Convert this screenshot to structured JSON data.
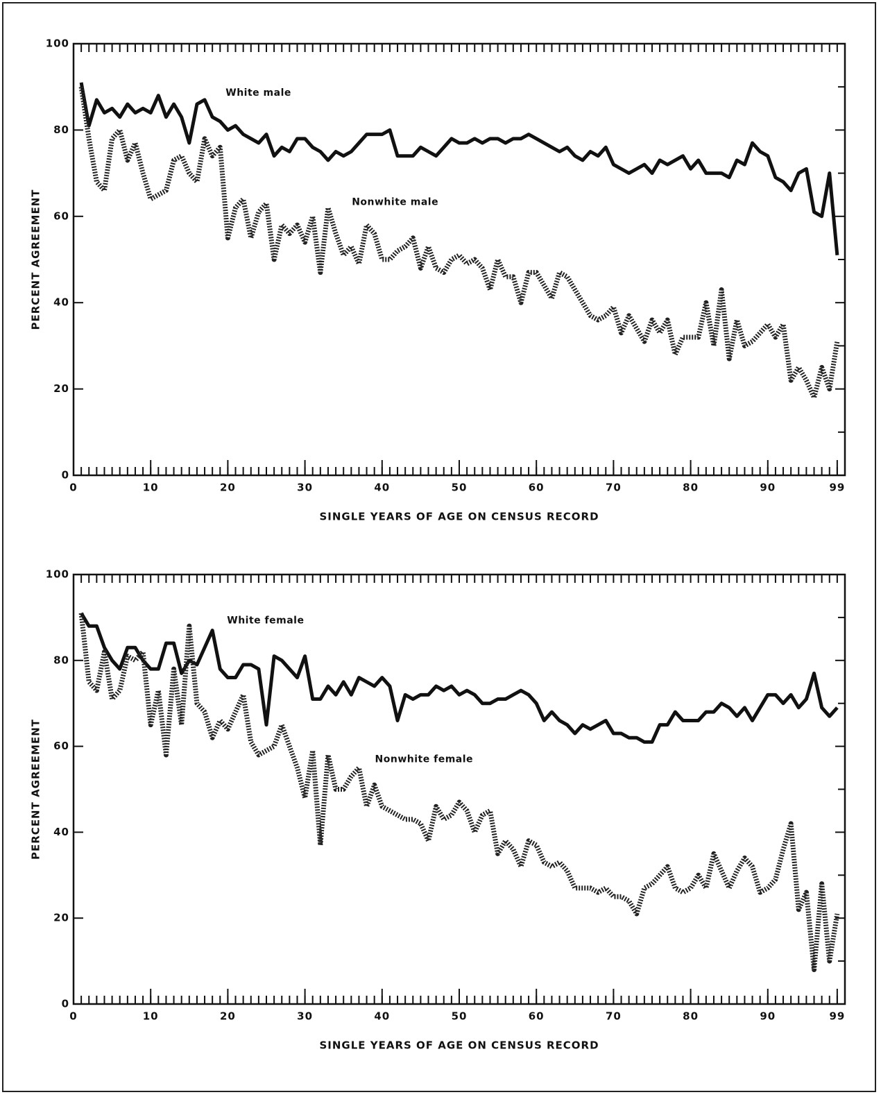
{
  "chart_data": [
    {
      "type": "line",
      "xlabel": "SINGLE YEARS OF AGE ON CENSUS RECORD",
      "ylabel": "PERCENT AGREEMENT",
      "x": [
        1,
        2,
        3,
        4,
        5,
        6,
        7,
        8,
        9,
        10,
        11,
        12,
        13,
        14,
        15,
        16,
        17,
        18,
        19,
        20,
        21,
        22,
        23,
        24,
        25,
        26,
        27,
        28,
        29,
        30,
        31,
        32,
        33,
        34,
        35,
        36,
        37,
        38,
        39,
        40,
        41,
        42,
        43,
        44,
        45,
        46,
        47,
        48,
        49,
        50,
        51,
        52,
        53,
        54,
        55,
        56,
        57,
        58,
        59,
        60,
        61,
        62,
        63,
        64,
        65,
        66,
        67,
        68,
        69,
        70,
        71,
        72,
        73,
        74,
        75,
        76,
        77,
        78,
        79,
        80,
        81,
        82,
        83,
        84,
        85,
        86,
        87,
        88,
        89,
        90,
        91,
        92,
        93,
        94,
        95,
        96,
        97,
        98,
        99
      ],
      "series": [
        {
          "name": "White male",
          "color": "#111111",
          "linestyle": "solid",
          "values": [
            91,
            81,
            87,
            84,
            85,
            83,
            86,
            84,
            85,
            84,
            88,
            83,
            86,
            83,
            77,
            86,
            87,
            83,
            82,
            80,
            81,
            79,
            78,
            77,
            79,
            74,
            76,
            75,
            78,
            78,
            76,
            75,
            73,
            75,
            74,
            75,
            77,
            79,
            79,
            79,
            80,
            74,
            74,
            74,
            76,
            75,
            74,
            76,
            78,
            77,
            77,
            78,
            77,
            78,
            78,
            77,
            78,
            78,
            79,
            78,
            77,
            76,
            75,
            76,
            74,
            73,
            75,
            74,
            76,
            72,
            71,
            70,
            71,
            72,
            70,
            73,
            72,
            73,
            74,
            71,
            73,
            70,
            70,
            70,
            69,
            73,
            72,
            77,
            75,
            74,
            69,
            68,
            66,
            70,
            71,
            61,
            60,
            70,
            51
          ]
        },
        {
          "name": "Nonwhite male",
          "color": "#222222",
          "linestyle": "dotted",
          "values": [
            90,
            78,
            68,
            66,
            78,
            80,
            73,
            77,
            70,
            64,
            65,
            66,
            73,
            74,
            70,
            68,
            78,
            74,
            76,
            55,
            62,
            64,
            55,
            61,
            63,
            50,
            58,
            56,
            58,
            54,
            60,
            47,
            62,
            56,
            51,
            53,
            49,
            58,
            56,
            50,
            50,
            52,
            53,
            55,
            48,
            53,
            48,
            47,
            50,
            51,
            49,
            50,
            48,
            43,
            50,
            46,
            46,
            40,
            47,
            47,
            44,
            41,
            47,
            46,
            43,
            40,
            37,
            36,
            37,
            39,
            33,
            37,
            34,
            31,
            36,
            33,
            36,
            28,
            32,
            32,
            32,
            40,
            30,
            43,
            27,
            36,
            30,
            31,
            33,
            35,
            32,
            35,
            22,
            25,
            22,
            18,
            25,
            20,
            31
          ]
        }
      ],
      "xlim": [
        0,
        100
      ],
      "ylim": [
        0,
        100
      ],
      "xticks": [
        0,
        10,
        20,
        30,
        40,
        50,
        60,
        70,
        80,
        90,
        99
      ],
      "yticks": [
        0,
        20,
        40,
        60,
        80,
        100
      ]
    },
    {
      "type": "line",
      "xlabel": "SINGLE YEARS OF AGE ON CENSUS RECORD",
      "ylabel": "PERCENT AGREEMENT",
      "x": [
        1,
        2,
        3,
        4,
        5,
        6,
        7,
        8,
        9,
        10,
        11,
        12,
        13,
        14,
        15,
        16,
        17,
        18,
        19,
        20,
        21,
        22,
        23,
        24,
        25,
        26,
        27,
        28,
        29,
        30,
        31,
        32,
        33,
        34,
        35,
        36,
        37,
        38,
        39,
        40,
        41,
        42,
        43,
        44,
        45,
        46,
        47,
        48,
        49,
        50,
        51,
        52,
        53,
        54,
        55,
        56,
        57,
        58,
        59,
        60,
        61,
        62,
        63,
        64,
        65,
        66,
        67,
        68,
        69,
        70,
        71,
        72,
        73,
        74,
        75,
        76,
        77,
        78,
        79,
        80,
        81,
        82,
        83,
        84,
        85,
        86,
        87,
        88,
        89,
        90,
        91,
        92,
        93,
        94,
        95,
        96,
        97,
        98,
        99
      ],
      "series": [
        {
          "name": "White female",
          "color": "#111111",
          "linestyle": "solid",
          "values": [
            91,
            88,
            88,
            83,
            80,
            78,
            83,
            83,
            80,
            78,
            78,
            84,
            84,
            77,
            80,
            79,
            83,
            87,
            78,
            76,
            76,
            79,
            79,
            78,
            65,
            81,
            80,
            78,
            76,
            81,
            71,
            71,
            74,
            72,
            75,
            72,
            76,
            75,
            74,
            76,
            74,
            66,
            72,
            71,
            72,
            72,
            74,
            73,
            74,
            72,
            73,
            72,
            70,
            70,
            71,
            71,
            72,
            73,
            72,
            70,
            66,
            68,
            66,
            65,
            63,
            65,
            64,
            65,
            66,
            63,
            63,
            62,
            62,
            61,
            61,
            65,
            65,
            68,
            66,
            66,
            66,
            68,
            68,
            70,
            69,
            67,
            69,
            66,
            69,
            72,
            72,
            70,
            72,
            69,
            71,
            77,
            69,
            67,
            69
          ]
        },
        {
          "name": "Nonwhite female",
          "color": "#222222",
          "linestyle": "dotted",
          "values": [
            91,
            75,
            73,
            82,
            71,
            73,
            81,
            80,
            82,
            65,
            73,
            58,
            78,
            65,
            88,
            70,
            68,
            62,
            66,
            64,
            68,
            72,
            61,
            58,
            59,
            60,
            65,
            60,
            55,
            48,
            59,
            37,
            58,
            50,
            50,
            53,
            55,
            46,
            51,
            46,
            45,
            44,
            43,
            43,
            42,
            38,
            46,
            43,
            44,
            47,
            45,
            40,
            44,
            45,
            35,
            38,
            36,
            32,
            38,
            37,
            33,
            32,
            33,
            31,
            27,
            27,
            27,
            26,
            27,
            25,
            25,
            24,
            21,
            27,
            28,
            30,
            32,
            27,
            26,
            27,
            30,
            27,
            35,
            31,
            27,
            31,
            34,
            32,
            26,
            27,
            29,
            36,
            42,
            22,
            26,
            8,
            28,
            10,
            21
          ]
        }
      ],
      "xlim": [
        0,
        100
      ],
      "ylim": [
        0,
        100
      ],
      "xticks": [
        0,
        10,
        20,
        30,
        40,
        50,
        60,
        70,
        80,
        90,
        99
      ],
      "yticks": [
        0,
        20,
        40,
        60,
        80,
        100
      ]
    }
  ]
}
